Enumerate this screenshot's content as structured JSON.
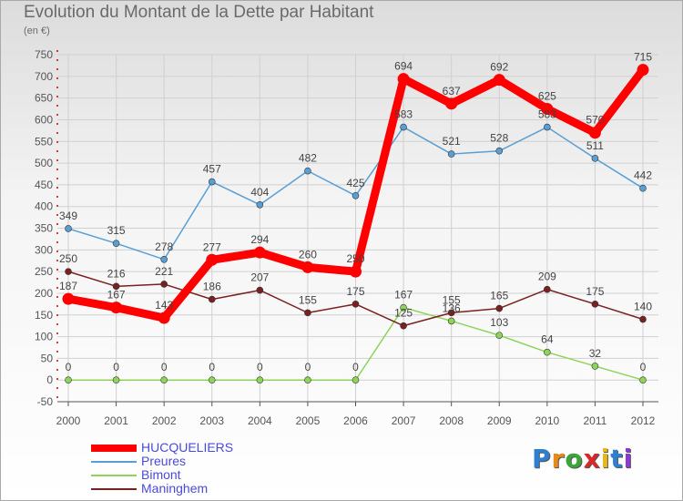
{
  "chart_data": {
    "type": "line",
    "title": "Evolution du Montant de la Dette par Habitant",
    "subtitle": "(en €)",
    "x": [
      "2000",
      "2001",
      "2002",
      "2003",
      "2004",
      "2005",
      "2006",
      "2007",
      "2008",
      "2009",
      "2010",
      "2011",
      "2012"
    ],
    "ylim": [
      -50,
      750
    ],
    "yticks": [
      -50,
      0,
      50,
      100,
      150,
      200,
      250,
      300,
      350,
      400,
      450,
      500,
      550,
      600,
      650,
      700,
      750
    ],
    "grid": true,
    "legend_position": "bottom-left",
    "series": [
      {
        "name": "HUCQUELIERS",
        "color": "#ff0000",
        "values": [
          187,
          167,
          143,
          277,
          294,
          260,
          250,
          694,
          637,
          692,
          625,
          570,
          715
        ]
      },
      {
        "name": "Preures",
        "color": "#5a9fd4",
        "values": [
          349,
          315,
          278,
          457,
          404,
          482,
          425,
          583,
          521,
          528,
          583,
          511,
          442
        ]
      },
      {
        "name": "Bimont",
        "color": "#8fd45a",
        "values": [
          0,
          0,
          0,
          0,
          0,
          0,
          0,
          167,
          136,
          103,
          64,
          32,
          0
        ]
      },
      {
        "name": "Maninghem",
        "color": "#7a2020",
        "values": [
          250,
          216,
          221,
          186,
          207,
          155,
          175,
          125,
          155,
          165,
          209,
          175,
          140
        ]
      }
    ]
  },
  "logo": {
    "letters": [
      "P",
      "r",
      "o",
      "x",
      "i",
      "t",
      "i"
    ],
    "colors": [
      "#2e7fd0",
      "#e88a1a",
      "#3aa63a",
      "#d82828",
      "#e8b81a",
      "#2e7fd0",
      "#8a3ad0"
    ]
  }
}
